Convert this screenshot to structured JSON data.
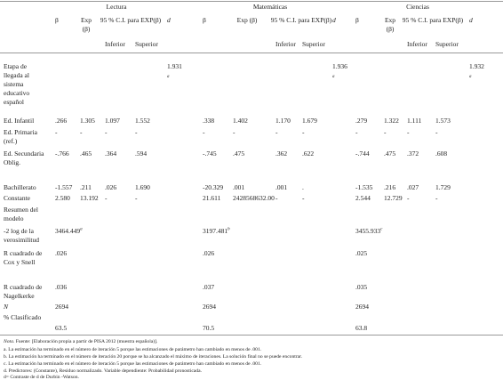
{
  "table": {
    "groups": [
      "Lectura",
      "Matemáticas",
      "Ciencias"
    ],
    "sub_headers": {
      "beta": "β",
      "exp": "Exp (β)",
      "ci": "95 % C.I. para EXP(β)",
      "inf": "Inferior",
      "sup": "Superior",
      "d": "d"
    },
    "rows": [
      {
        "label": "Etapa de llegada al sistema educativo español",
        "cells": [
          null,
          null,
          null,
          null,
          {
            "text": "1.931",
            "sup": "a"
          },
          null,
          null,
          null,
          null,
          {
            "text": "1.936",
            "sup": "a"
          },
          null,
          null,
          null,
          null,
          {
            "text": "1.932",
            "sup": "a"
          }
        ]
      },
      {
        "label": "Ed. Infantil",
        "cells": [
          ".266",
          "1.305",
          "1.097",
          "1.552",
          null,
          ".338",
          "1.402",
          "1.170",
          "1.679",
          null,
          ".279",
          "1.322",
          "1.111",
          "1.573",
          null
        ]
      },
      {
        "label": "Ed. Primaria (ref.)",
        "cells": [
          "-",
          "-",
          "-",
          "-",
          null,
          "-",
          "-",
          "-",
          "-",
          null,
          "-",
          "-",
          "-",
          "-",
          null
        ]
      },
      {
        "label": "Ed. Secundaria Oblig.",
        "cells": [
          "-.766",
          ".465",
          ".364",
          ".594",
          null,
          "-.745",
          ".475",
          ".362",
          ".622",
          null,
          "-.744",
          ".475",
          ".372",
          ".608",
          null
        ]
      },
      {
        "label": "Bachillerato",
        "cells": [
          "-1.557",
          ".211",
          ".026",
          "1.690",
          null,
          "-20.329",
          ".001",
          ".001",
          ".",
          null,
          "-1.535",
          ".216",
          ".027",
          "1.729",
          null
        ]
      },
      {
        "label": "Constante",
        "cells": [
          "2.580",
          "13.192",
          "-",
          "-",
          null,
          "21.611",
          "2428568632.00",
          "-",
          "-",
          null,
          "2.544",
          "12.729",
          "-",
          "-",
          null
        ]
      },
      {
        "label": "Resumen del modelo",
        "cells": [
          null,
          null,
          null,
          null,
          null,
          null,
          null,
          null,
          null,
          null,
          null,
          null,
          null,
          null,
          null
        ]
      },
      {
        "label": "-2 log de la verosimilitud",
        "cells": [
          {
            "text": "3464.449",
            "sup": "a"
          },
          null,
          null,
          null,
          null,
          {
            "text": "3197.481",
            "sup": "b"
          },
          null,
          null,
          null,
          null,
          {
            "text": "3455.933",
            "sup": "c"
          },
          null,
          null,
          null,
          null
        ]
      },
      {
        "label": "R cuadrado de Cox y Snell",
        "cells": [
          ".026",
          null,
          null,
          null,
          null,
          ".026",
          null,
          null,
          null,
          null,
          ".025",
          null,
          null,
          null,
          null
        ]
      },
      {
        "label": "R cuadrado de Nagelkerke",
        "cells": [
          ".036",
          null,
          null,
          null,
          null,
          ".037",
          null,
          null,
          null,
          null,
          ".035",
          null,
          null,
          null,
          null
        ]
      },
      {
        "label": "N",
        "cells": [
          "2694",
          null,
          null,
          null,
          null,
          "2694",
          null,
          null,
          null,
          null,
          "2694",
          null,
          null,
          null,
          null
        ]
      },
      {
        "label": "% Clasificado",
        "cells": [
          "63.5",
          null,
          null,
          null,
          null,
          "70.5",
          null,
          null,
          null,
          null,
          "63.8",
          null,
          null,
          null,
          null
        ]
      }
    ],
    "note_label": "Nota.",
    "notes": [
      "Fuente: [Elaboración propia a partir de PISA 2012 (muestra española)].",
      "a. La estimación ha terminado en el número de iteración 5 porque las estimaciones de parámetro han cambiado en menos de .001.",
      "b. La estimación ha terminado en el número de iteración 20 porque se ha alcanzado el máximo de iteraciones. La solución final no se puede encontrar.",
      "c. La estimación ha terminado en el número de iteración 5 porque las estimaciones de parámetro han cambiado en menos de .001.",
      "d. Predictores: (Constante), Residuo normalizado. Variable dependiente: Probabilidad pronosticada.",
      "d= Contraste de d de Durbin -Watson."
    ]
  }
}
